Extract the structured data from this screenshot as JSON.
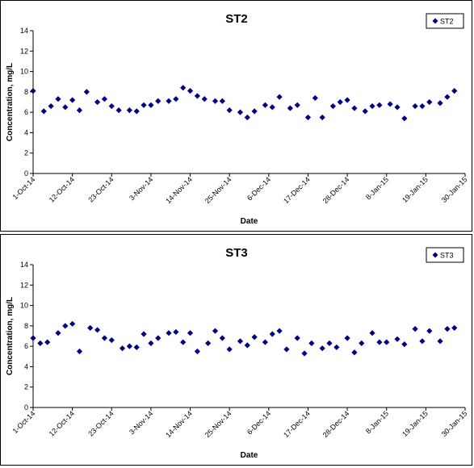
{
  "chart_data": [
    {
      "type": "scatter",
      "title": "ST2",
      "xlabel": "Date",
      "ylabel": "Concentration, mg/L",
      "ylim": [
        0,
        14
      ],
      "yticks": [
        "0",
        "2",
        "4",
        "6",
        "8",
        "10",
        "12",
        "14"
      ],
      "x_ticks": [
        {
          "x": "2014-10-01",
          "label": "1-Oct-14"
        },
        {
          "x": "2014-10-12",
          "label": "12-Oct-14"
        },
        {
          "x": "2014-10-23",
          "label": "23-Oct-14"
        },
        {
          "x": "2014-11-03",
          "label": "3-Nov-14"
        },
        {
          "x": "2014-11-14",
          "label": "14-Nov-14"
        },
        {
          "x": "2014-11-25",
          "label": "25-Nov-14"
        },
        {
          "x": "2014-12-06",
          "label": "6-Dec-14"
        },
        {
          "x": "2014-12-17",
          "label": "17-Dec-14"
        },
        {
          "x": "2014-12-28",
          "label": "28-Dec-14"
        },
        {
          "x": "2015-01-08",
          "label": "8-Jan-15"
        },
        {
          "x": "2015-01-19",
          "label": "19-Jan-15"
        },
        {
          "x": "2015-01-30",
          "label": "30-Jan-15"
        }
      ],
      "xlim": [
        "2014-10-01",
        "2015-01-30"
      ],
      "legend_position": "top-right",
      "marker": "diamond",
      "color": "#000080",
      "series": [
        {
          "name": "ST2",
          "points": [
            {
              "x": "2014-10-01",
              "y": 8.1
            },
            {
              "x": "2014-10-04",
              "y": 6.1
            },
            {
              "x": "2014-10-06",
              "y": 6.6
            },
            {
              "x": "2014-10-08",
              "y": 7.3
            },
            {
              "x": "2014-10-10",
              "y": 6.5
            },
            {
              "x": "2014-10-12",
              "y": 7.2
            },
            {
              "x": "2014-10-14",
              "y": 6.2
            },
            {
              "x": "2014-10-16",
              "y": 8.0
            },
            {
              "x": "2014-10-19",
              "y": 7.0
            },
            {
              "x": "2014-10-21",
              "y": 7.3
            },
            {
              "x": "2014-10-23",
              "y": 6.6
            },
            {
              "x": "2014-10-25",
              "y": 6.2
            },
            {
              "x": "2014-10-28",
              "y": 6.2
            },
            {
              "x": "2014-10-30",
              "y": 6.1
            },
            {
              "x": "2014-11-01",
              "y": 6.7
            },
            {
              "x": "2014-11-03",
              "y": 6.7
            },
            {
              "x": "2014-11-05",
              "y": 7.1
            },
            {
              "x": "2014-11-08",
              "y": 7.1
            },
            {
              "x": "2014-11-10",
              "y": 7.3
            },
            {
              "x": "2014-11-12",
              "y": 8.4
            },
            {
              "x": "2014-11-14",
              "y": 8.1
            },
            {
              "x": "2014-11-16",
              "y": 7.6
            },
            {
              "x": "2014-11-18",
              "y": 7.3
            },
            {
              "x": "2014-11-21",
              "y": 7.1
            },
            {
              "x": "2014-11-23",
              "y": 7.1
            },
            {
              "x": "2014-11-25",
              "y": 6.2
            },
            {
              "x": "2014-11-28",
              "y": 6.0
            },
            {
              "x": "2014-11-30",
              "y": 5.5
            },
            {
              "x": "2014-12-02",
              "y": 6.1
            },
            {
              "x": "2014-12-05",
              "y": 6.7
            },
            {
              "x": "2014-12-07",
              "y": 6.5
            },
            {
              "x": "2014-12-09",
              "y": 7.5
            },
            {
              "x": "2014-12-12",
              "y": 6.4
            },
            {
              "x": "2014-12-14",
              "y": 6.7
            },
            {
              "x": "2014-12-17",
              "y": 5.5
            },
            {
              "x": "2014-12-19",
              "y": 7.4
            },
            {
              "x": "2014-12-21",
              "y": 5.5
            },
            {
              "x": "2014-12-24",
              "y": 6.6
            },
            {
              "x": "2014-12-26",
              "y": 7.0
            },
            {
              "x": "2014-12-28",
              "y": 7.2
            },
            {
              "x": "2014-12-30",
              "y": 6.4
            },
            {
              "x": "2015-01-02",
              "y": 6.1
            },
            {
              "x": "2015-01-04",
              "y": 6.6
            },
            {
              "x": "2015-01-06",
              "y": 6.7
            },
            {
              "x": "2015-01-09",
              "y": 6.8
            },
            {
              "x": "2015-01-11",
              "y": 6.5
            },
            {
              "x": "2015-01-13",
              "y": 5.4
            },
            {
              "x": "2015-01-16",
              "y": 6.6
            },
            {
              "x": "2015-01-18",
              "y": 6.6
            },
            {
              "x": "2015-01-20",
              "y": 7.0
            },
            {
              "x": "2015-01-23",
              "y": 6.9
            },
            {
              "x": "2015-01-25",
              "y": 7.5
            },
            {
              "x": "2015-01-27",
              "y": 8.1
            }
          ]
        }
      ]
    },
    {
      "type": "scatter",
      "title": "ST3",
      "xlabel": "Date",
      "ylabel": "Concentration, mg/L",
      "ylim": [
        0,
        14
      ],
      "yticks": [
        "0",
        "2",
        "4",
        "6",
        "8",
        "10",
        "12",
        "14"
      ],
      "x_ticks": [
        {
          "x": "2014-10-01",
          "label": "1-Oct-14"
        },
        {
          "x": "2014-10-12",
          "label": "12-Oct-14"
        },
        {
          "x": "2014-10-23",
          "label": "23-Oct-14"
        },
        {
          "x": "2014-11-03",
          "label": "3-Nov-14"
        },
        {
          "x": "2014-11-14",
          "label": "14-Nov-14"
        },
        {
          "x": "2014-11-25",
          "label": "25-Nov-14"
        },
        {
          "x": "2014-12-06",
          "label": "6-Dec-14"
        },
        {
          "x": "2014-12-17",
          "label": "17-Dec-14"
        },
        {
          "x": "2014-12-28",
          "label": "28-Dec-14"
        },
        {
          "x": "2015-01-08",
          "label": "8-Jan-15"
        },
        {
          "x": "2015-01-19",
          "label": "19-Jan-15"
        },
        {
          "x": "2015-01-30",
          "label": "30-Jan-15"
        }
      ],
      "xlim": [
        "2014-10-01",
        "2015-01-30"
      ],
      "legend_position": "top-right",
      "marker": "diamond",
      "color": "#000080",
      "series": [
        {
          "name": "ST3",
          "points": [
            {
              "x": "2014-10-01",
              "y": 6.8
            },
            {
              "x": "2014-10-03",
              "y": 6.3
            },
            {
              "x": "2014-10-05",
              "y": 6.4
            },
            {
              "x": "2014-10-08",
              "y": 7.3
            },
            {
              "x": "2014-10-10",
              "y": 8.0
            },
            {
              "x": "2014-10-12",
              "y": 8.2
            },
            {
              "x": "2014-10-14",
              "y": 5.5
            },
            {
              "x": "2014-10-17",
              "y": 7.8
            },
            {
              "x": "2014-10-19",
              "y": 7.6
            },
            {
              "x": "2014-10-21",
              "y": 6.8
            },
            {
              "x": "2014-10-23",
              "y": 6.6
            },
            {
              "x": "2014-10-26",
              "y": 5.8
            },
            {
              "x": "2014-10-28",
              "y": 6.0
            },
            {
              "x": "2014-10-30",
              "y": 5.9
            },
            {
              "x": "2014-11-01",
              "y": 7.2
            },
            {
              "x": "2014-11-03",
              "y": 6.3
            },
            {
              "x": "2014-11-05",
              "y": 6.8
            },
            {
              "x": "2014-11-08",
              "y": 7.3
            },
            {
              "x": "2014-11-10",
              "y": 7.4
            },
            {
              "x": "2014-11-12",
              "y": 6.4
            },
            {
              "x": "2014-11-14",
              "y": 7.3
            },
            {
              "x": "2014-11-16",
              "y": 5.5
            },
            {
              "x": "2014-11-19",
              "y": 6.3
            },
            {
              "x": "2014-11-21",
              "y": 7.5
            },
            {
              "x": "2014-11-23",
              "y": 6.8
            },
            {
              "x": "2014-11-25",
              "y": 5.7
            },
            {
              "x": "2014-11-28",
              "y": 6.5
            },
            {
              "x": "2014-11-30",
              "y": 6.1
            },
            {
              "x": "2014-12-02",
              "y": 6.9
            },
            {
              "x": "2014-12-05",
              "y": 6.4
            },
            {
              "x": "2014-12-07",
              "y": 7.2
            },
            {
              "x": "2014-12-09",
              "y": 7.5
            },
            {
              "x": "2014-12-11",
              "y": 5.7
            },
            {
              "x": "2014-12-14",
              "y": 6.8
            },
            {
              "x": "2014-12-16",
              "y": 5.3
            },
            {
              "x": "2014-12-18",
              "y": 6.3
            },
            {
              "x": "2014-12-21",
              "y": 5.8
            },
            {
              "x": "2014-12-23",
              "y": 6.3
            },
            {
              "x": "2014-12-25",
              "y": 5.9
            },
            {
              "x": "2014-12-28",
              "y": 6.8
            },
            {
              "x": "2014-12-30",
              "y": 5.4
            },
            {
              "x": "2015-01-01",
              "y": 6.3
            },
            {
              "x": "2015-01-04",
              "y": 7.3
            },
            {
              "x": "2015-01-06",
              "y": 6.4
            },
            {
              "x": "2015-01-08",
              "y": 6.4
            },
            {
              "x": "2015-01-11",
              "y": 6.7
            },
            {
              "x": "2015-01-13",
              "y": 6.2
            },
            {
              "x": "2015-01-16",
              "y": 7.7
            },
            {
              "x": "2015-01-18",
              "y": 6.5
            },
            {
              "x": "2015-01-20",
              "y": 7.5
            },
            {
              "x": "2015-01-23",
              "y": 6.5
            },
            {
              "x": "2015-01-25",
              "y": 7.7
            },
            {
              "x": "2015-01-27",
              "y": 7.8
            }
          ]
        }
      ]
    }
  ]
}
